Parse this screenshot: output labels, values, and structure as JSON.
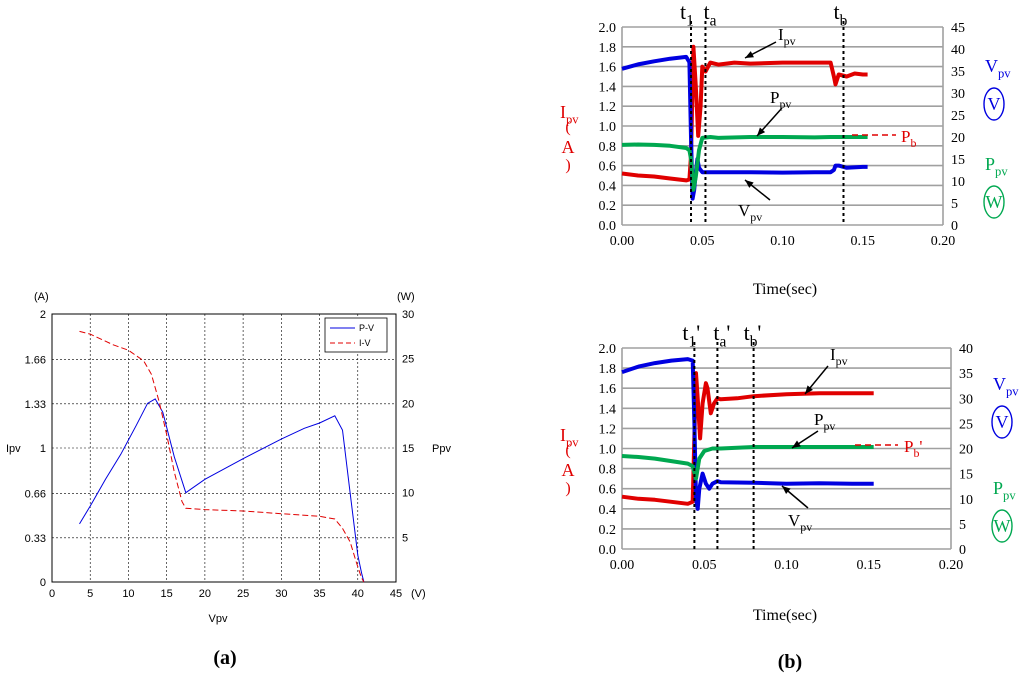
{
  "colors": {
    "red": "#e00000",
    "blue": "#0000e0",
    "green": "#00a850",
    "grid_gray": "#a0a0a0",
    "black": "#000000"
  },
  "captions": {
    "a": "(a)",
    "b": "(b)"
  },
  "chart_data": [
    {
      "id": "a",
      "type": "line",
      "xlabel": "Vpv",
      "ylabel_left": "Ipv",
      "ylabel_right": "Ppv",
      "x_unit": "(V)",
      "y_left_unit": "(A)",
      "y_right_unit": "(W)",
      "xlim": [
        0,
        45
      ],
      "ylim_left": [
        0,
        2
      ],
      "ylim_right": [
        0,
        30
      ],
      "x_ticks": [
        "0",
        "5",
        "10",
        "15",
        "20",
        "25",
        "30",
        "35",
        "40",
        "45"
      ],
      "y_left_ticks": [
        {
          "v": 0,
          "label": "0"
        },
        {
          "v": 0.33,
          "label": "0.33"
        },
        {
          "v": 0.66,
          "label": "0.66"
        },
        {
          "v": 1,
          "label": "1"
        },
        {
          "v": 1.33,
          "label": "1.33"
        },
        {
          "v": 1.66,
          "label": "1.66"
        },
        {
          "v": 2,
          "label": "2"
        }
      ],
      "y_right_ticks": [
        {
          "v": 0,
          "label": ""
        },
        {
          "v": 5,
          "label": "5"
        },
        {
          "v": 10,
          "label": "10"
        },
        {
          "v": 15,
          "label": "15"
        },
        {
          "v": 20,
          "label": "20"
        },
        {
          "v": 25,
          "label": "25"
        },
        {
          "v": 30,
          "label": "30"
        }
      ],
      "legend": [
        "P-V",
        "I-V"
      ],
      "series": [
        {
          "name": "P-V",
          "axis": "right",
          "color": "blue",
          "x": [
            3.6,
            5,
            7,
            9,
            11,
            12.5,
            13.5,
            14.5,
            16,
            17.5,
            20,
            25,
            30,
            33,
            35,
            37,
            38,
            39,
            40,
            40.5,
            40.8
          ],
          "y": [
            6.5,
            8.5,
            11.5,
            14.3,
            17.5,
            20,
            20.5,
            19,
            14,
            10,
            11.5,
            13.8,
            16,
            17.2,
            17.8,
            18.6,
            17,
            10,
            3,
            1,
            0
          ]
        },
        {
          "name": "I-V",
          "axis": "left",
          "color": "red",
          "dash": true,
          "x": [
            3.6,
            5,
            8,
            10,
            12,
            13,
            14,
            15,
            16,
            17,
            17.5,
            20,
            25,
            30,
            35,
            37,
            38,
            39,
            39.8,
            40.2,
            40.5,
            40.8
          ],
          "y": [
            1.87,
            1.85,
            1.77,
            1.73,
            1.65,
            1.55,
            1.35,
            1.1,
            0.82,
            0.6,
            0.55,
            0.54,
            0.53,
            0.51,
            0.49,
            0.47,
            0.4,
            0.3,
            0.15,
            0.08,
            0.03,
            0
          ]
        }
      ]
    },
    {
      "id": "b1",
      "type": "line",
      "xlabel": "Time(sec)",
      "xlim": [
        0,
        0.2
      ],
      "ylim_left": [
        0,
        2
      ],
      "ylim_right": [
        0,
        45
      ],
      "x_ticks": [
        "0.00",
        "0.05",
        "0.10",
        "0.15",
        "0.20"
      ],
      "y_left_ticks": [
        "0.0",
        "0.2",
        "0.4",
        "0.6",
        "0.8",
        "1.0",
        "1.2",
        "1.4",
        "1.6",
        "1.8",
        "2.0"
      ],
      "y_right_ticks": [
        "0",
        "5",
        "10",
        "15",
        "20",
        "25",
        "30",
        "35",
        "40",
        "45"
      ],
      "marker_lines": [
        0.043,
        0.052,
        0.138
      ],
      "marker_labels": [
        {
          "x": 0.043,
          "base": "t",
          "sub": "1"
        },
        {
          "x": 0.052,
          "base": "t",
          "sub": "a"
        },
        {
          "x": 0.138,
          "base": "t",
          "sub": "b"
        }
      ],
      "left_axis_label": {
        "base": "I",
        "sub": "pv",
        "unit": "A"
      },
      "right_axis_labels": [
        {
          "base": "V",
          "sub": "pv",
          "unit": "V",
          "color": "blue"
        },
        {
          "base": "P",
          "sub": "pv",
          "unit": "W",
          "color": "green"
        }
      ],
      "annotations": [
        {
          "base": "I",
          "sub": "pv",
          "color": "black"
        },
        {
          "base": "P",
          "sub": "pv",
          "color": "black"
        },
        {
          "base": "V",
          "sub": "pv",
          "color": "black"
        },
        {
          "base": "P",
          "sub": "b",
          "color": "red"
        }
      ],
      "series": [
        {
          "name": "Ipv",
          "axis": "left",
          "color": "red",
          "x": [
            0,
            0.01,
            0.02,
            0.03,
            0.04,
            0.042,
            0.043,
            0.0445,
            0.046,
            0.0475,
            0.049,
            0.05,
            0.052,
            0.055,
            0.06,
            0.07,
            0.08,
            0.1,
            0.12,
            0.13,
            0.132,
            0.133,
            0.135,
            0.14,
            0.145,
            0.15,
            0.153
          ],
          "y": [
            0.52,
            0.5,
            0.49,
            0.47,
            0.45,
            0.46,
            0.7,
            1.8,
            1.4,
            0.9,
            1.2,
            1.6,
            1.55,
            1.64,
            1.62,
            1.64,
            1.63,
            1.64,
            1.64,
            1.64,
            1.5,
            1.42,
            1.52,
            1.5,
            1.53,
            1.52,
            1.52
          ]
        },
        {
          "name": "Vpv",
          "axis": "right",
          "color": "blue",
          "x": [
            0,
            0.01,
            0.02,
            0.03,
            0.04,
            0.042,
            0.043,
            0.044,
            0.045,
            0.046,
            0.047,
            0.048,
            0.05,
            0.055,
            0.06,
            0.08,
            0.1,
            0.12,
            0.13,
            0.132,
            0.133,
            0.135,
            0.14,
            0.15,
            0.153
          ],
          "y": [
            35.5,
            36.5,
            37.2,
            37.8,
            38.2,
            37,
            20,
            6,
            8,
            12,
            15,
            13,
            12,
            12,
            12,
            12,
            11.9,
            12,
            12,
            12.5,
            13.5,
            13.5,
            13,
            13.2,
            13.2
          ]
        },
        {
          "name": "Ppv",
          "axis": "right",
          "color": "green",
          "x": [
            0,
            0.01,
            0.02,
            0.03,
            0.04,
            0.042,
            0.043,
            0.0445,
            0.046,
            0.048,
            0.05,
            0.055,
            0.06,
            0.08,
            0.1,
            0.12,
            0.13,
            0.14,
            0.15,
            0.153
          ],
          "y": [
            18.2,
            18.3,
            18.2,
            18,
            17.5,
            17,
            15,
            8,
            11,
            17,
            19.8,
            20,
            19.8,
            20,
            20,
            19.9,
            20,
            20,
            20,
            20
          ]
        }
      ]
    },
    {
      "id": "b2",
      "type": "line",
      "xlabel": "Time(sec)",
      "xlim": [
        0,
        0.2
      ],
      "ylim_left": [
        0,
        2
      ],
      "ylim_right": [
        0,
        40
      ],
      "x_ticks": [
        "0.00",
        "0.05",
        "0.10",
        "0.15",
        "0.20"
      ],
      "y_left_ticks": [
        "0.0",
        "0.2",
        "0.4",
        "0.6",
        "0.8",
        "1.0",
        "1.2",
        "1.4",
        "1.6",
        "1.8",
        "2.0"
      ],
      "y_right_ticks": [
        "0",
        "5",
        "10",
        "15",
        "20",
        "25",
        "30",
        "35",
        "40"
      ],
      "marker_lines": [
        0.044,
        0.058,
        0.08
      ],
      "marker_labels": [
        {
          "x": 0.044,
          "base": "t",
          "sub": "1",
          "prime": "'"
        },
        {
          "x": 0.058,
          "base": "t",
          "sub": "a",
          "prime": "'"
        },
        {
          "x": 0.08,
          "base": "t",
          "sub": "b",
          "prime": "'"
        }
      ],
      "left_axis_label": {
        "base": "I",
        "sub": "pv",
        "unit": "A"
      },
      "right_axis_labels": [
        {
          "base": "V",
          "sub": "pv",
          "unit": "V",
          "color": "blue"
        },
        {
          "base": "P",
          "sub": "pv",
          "unit": "W",
          "color": "green"
        }
      ],
      "annotations": [
        {
          "base": "I",
          "sub": "pv",
          "color": "black"
        },
        {
          "base": "P",
          "sub": "pv",
          "color": "black"
        },
        {
          "base": "V",
          "sub": "pv",
          "color": "black"
        },
        {
          "base": "P",
          "sub": "b",
          "prime": "'",
          "color": "red"
        }
      ],
      "series": [
        {
          "name": "Ipv",
          "axis": "left",
          "color": "red",
          "x": [
            0,
            0.01,
            0.02,
            0.03,
            0.04,
            0.043,
            0.045,
            0.046,
            0.0475,
            0.049,
            0.051,
            0.052,
            0.054,
            0.056,
            0.058,
            0.06,
            0.07,
            0.08,
            0.1,
            0.12,
            0.14,
            0.153
          ],
          "y": [
            0.52,
            0.5,
            0.49,
            0.47,
            0.45,
            0.47,
            1.75,
            1.5,
            1.1,
            1.45,
            1.65,
            1.6,
            1.35,
            1.45,
            1.5,
            1.49,
            1.5,
            1.52,
            1.54,
            1.55,
            1.55,
            1.55
          ]
        },
        {
          "name": "Vpv",
          "axis": "right",
          "color": "blue",
          "x": [
            0,
            0.01,
            0.02,
            0.03,
            0.04,
            0.043,
            0.044,
            0.045,
            0.046,
            0.047,
            0.049,
            0.051,
            0.053,
            0.055,
            0.058,
            0.06,
            0.08,
            0.1,
            0.12,
            0.14,
            0.153
          ],
          "y": [
            35.2,
            36.3,
            37,
            37.5,
            37.8,
            37.5,
            25,
            10,
            8,
            12,
            15,
            13,
            12,
            13,
            13.5,
            13.3,
            13.2,
            13,
            13.1,
            13,
            13
          ]
        },
        {
          "name": "Ppv",
          "axis": "right",
          "color": "green",
          "x": [
            0,
            0.01,
            0.02,
            0.03,
            0.04,
            0.043,
            0.045,
            0.047,
            0.05,
            0.055,
            0.06,
            0.08,
            0.1,
            0.12,
            0.14,
            0.153
          ],
          "y": [
            18.5,
            18.3,
            18,
            17.5,
            17,
            16.5,
            14,
            18,
            19.5,
            20,
            20,
            20.3,
            20.3,
            20.3,
            20.3,
            20.3
          ]
        }
      ]
    }
  ]
}
